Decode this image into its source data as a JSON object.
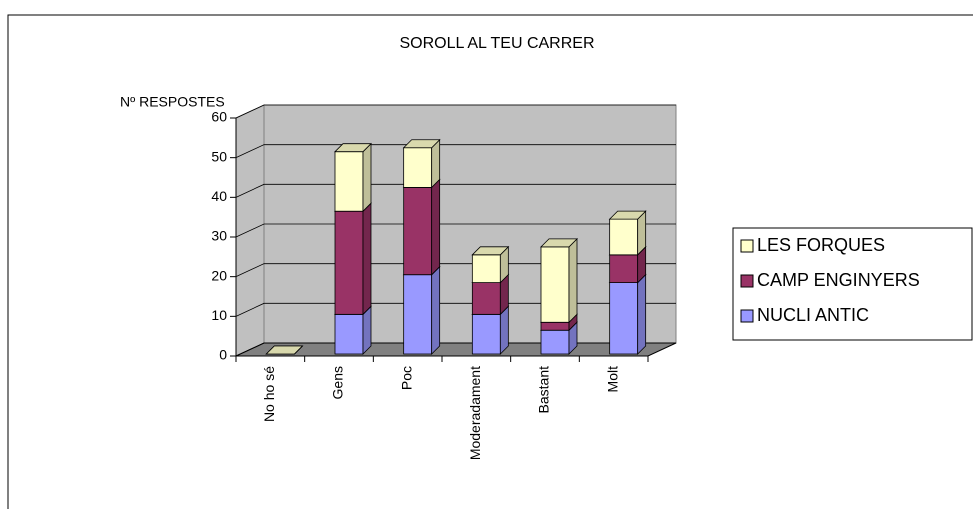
{
  "chart_data": {
    "type": "bar3d_stacked",
    "title": "SOROLL AL TEU CARRER",
    "y_label": "Nº RESPOSTES",
    "categories": [
      "No ho sé",
      "Gens",
      "Poc",
      "Moderadament",
      "Bastant",
      "Molt"
    ],
    "series": [
      {
        "name": "NUCLI ANTIC",
        "color": "#9999ff",
        "values": [
          0,
          10,
          20,
          10,
          6,
          18
        ]
      },
      {
        "name": "CAMP ENGINYERS",
        "color": "#993366",
        "values": [
          0,
          26,
          22,
          8,
          2,
          7
        ]
      },
      {
        "name": "LES FORQUES",
        "color": "#ffffcc",
        "values": [
          0,
          15,
          10,
          7,
          19,
          9
        ]
      }
    ],
    "ylim": [
      0,
      60
    ],
    "yticks": [
      0,
      10,
      20,
      30,
      40,
      50,
      60
    ],
    "grid": true,
    "legend": "right"
  }
}
